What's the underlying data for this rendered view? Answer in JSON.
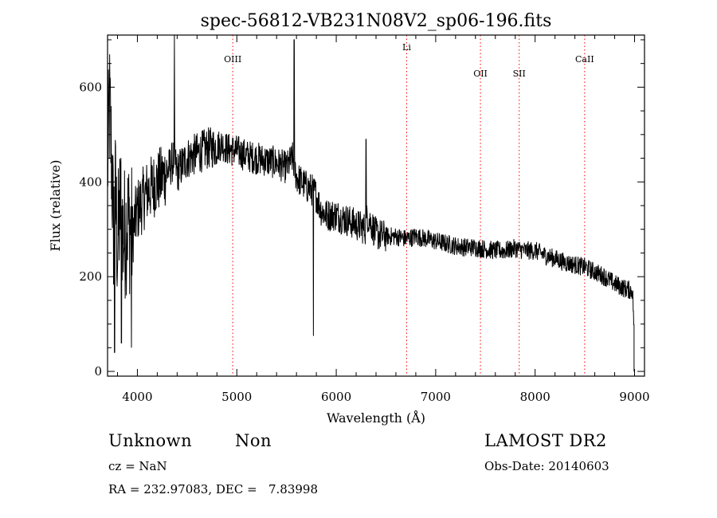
{
  "chart_data": {
    "type": "line",
    "title": "spec-56812-VB231N08V2_sp06-196.fits",
    "xlabel": "Wavelength (Å)",
    "ylabel": "Flux (relative)",
    "xlim": [
      3700,
      9100
    ],
    "ylim": [
      -10,
      710
    ],
    "xticks": [
      4000,
      5000,
      6000,
      7000,
      8000,
      9000
    ],
    "yticks": [
      0,
      200,
      400,
      600
    ],
    "grid": false,
    "line_color": "#000000",
    "line_marker_color": "#ff0000",
    "lines": [
      {
        "label": "OIII",
        "x": 4959
      },
      {
        "label": "Li",
        "x": 6708
      },
      {
        "label": "OII",
        "x": 7450
      },
      {
        "label": "SII",
        "x": 7840
      },
      {
        "label": "CaII",
        "x": 8498
      }
    ],
    "series": [
      {
        "x": [
          3700,
          3720,
          3740,
          3760,
          3780,
          3800,
          3830,
          3860,
          3900,
          3950,
          4000,
          4100,
          4200,
          4300,
          4370,
          4400,
          4500,
          4600,
          4700,
          4800,
          4850,
          4900,
          5000,
          5050,
          5100,
          5200,
          5300,
          5400,
          5500,
          5560,
          5600,
          5700,
          5780,
          5800,
          5850,
          5900,
          6000,
          6100,
          6200,
          6300,
          6310,
          6400,
          6500,
          6600,
          6700,
          6800,
          6900,
          7000,
          7100,
          7200,
          7300,
          7400,
          7500,
          7600,
          7700,
          7800,
          7900,
          8000,
          8100,
          8200,
          8300,
          8400,
          8500,
          8600,
          8700,
          8800,
          8900,
          8980,
          8995
        ],
        "y": [
          430,
          560,
          450,
          300,
          370,
          260,
          360,
          280,
          320,
          290,
          340,
          380,
          400,
          420,
          450,
          420,
          450,
          460,
          470,
          475,
          480,
          470,
          465,
          460,
          455,
          450,
          445,
          440,
          430,
          450,
          410,
          390,
          380,
          370,
          340,
          330,
          330,
          320,
          310,
          300,
          330,
          290,
          285,
          285,
          280,
          285,
          280,
          275,
          270,
          265,
          262,
          262,
          258,
          255,
          255,
          260,
          255,
          255,
          245,
          238,
          230,
          225,
          220,
          210,
          200,
          185,
          175,
          170,
          90
        ]
      }
    ]
  },
  "footer": {
    "object_class": "Unknown",
    "subclass": "Non",
    "survey": "LAMOST DR2",
    "cz": "cz = NaN",
    "obs_date": "Obs-Date: 20140603",
    "radec": "RA = 232.97083, DEC =   7.83998"
  }
}
